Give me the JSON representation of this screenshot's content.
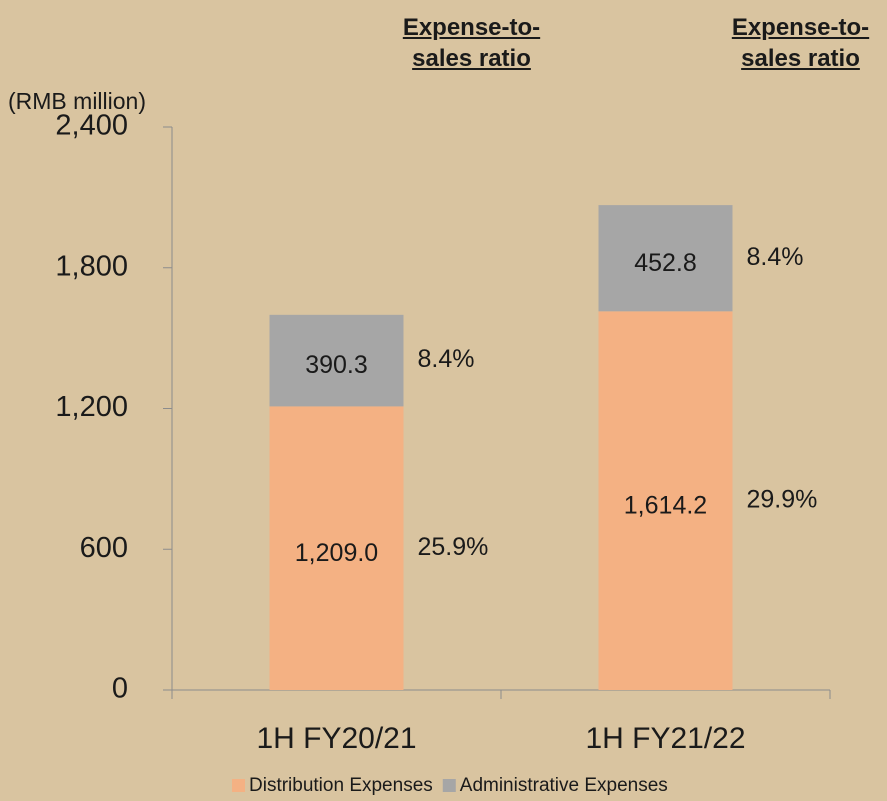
{
  "chart_data": {
    "type": "stacked_bar",
    "y_label": "(RMB million)",
    "ratio_header": "Expense-to-sales ratio",
    "categories": [
      "1H FY20/21",
      "1H FY21/22"
    ],
    "series": [
      {
        "name": "Distribution Expenses",
        "color": "#f4b183",
        "values": [
          1209.0,
          1614.2
        ],
        "value_labels": [
          "1,209.0",
          "1,614.2"
        ],
        "ratio_labels": [
          "25.9%",
          "29.9%"
        ]
      },
      {
        "name": "Administrative Expenses",
        "color": "#a6a6a6",
        "values": [
          390.3,
          452.8
        ],
        "value_labels": [
          "390.3",
          "452.8"
        ],
        "ratio_labels": [
          "8.4%",
          "8.4%"
        ]
      }
    ],
    "ylim": [
      0,
      2400
    ],
    "yticks": [
      0,
      600,
      {
        "value": 1200,
        "label": "1,200"
      },
      {
        "value": 1800,
        "label": "1,800"
      },
      {
        "value": 2400,
        "label": "2,400"
      }
    ],
    "grid": false,
    "legend": "bottom"
  }
}
